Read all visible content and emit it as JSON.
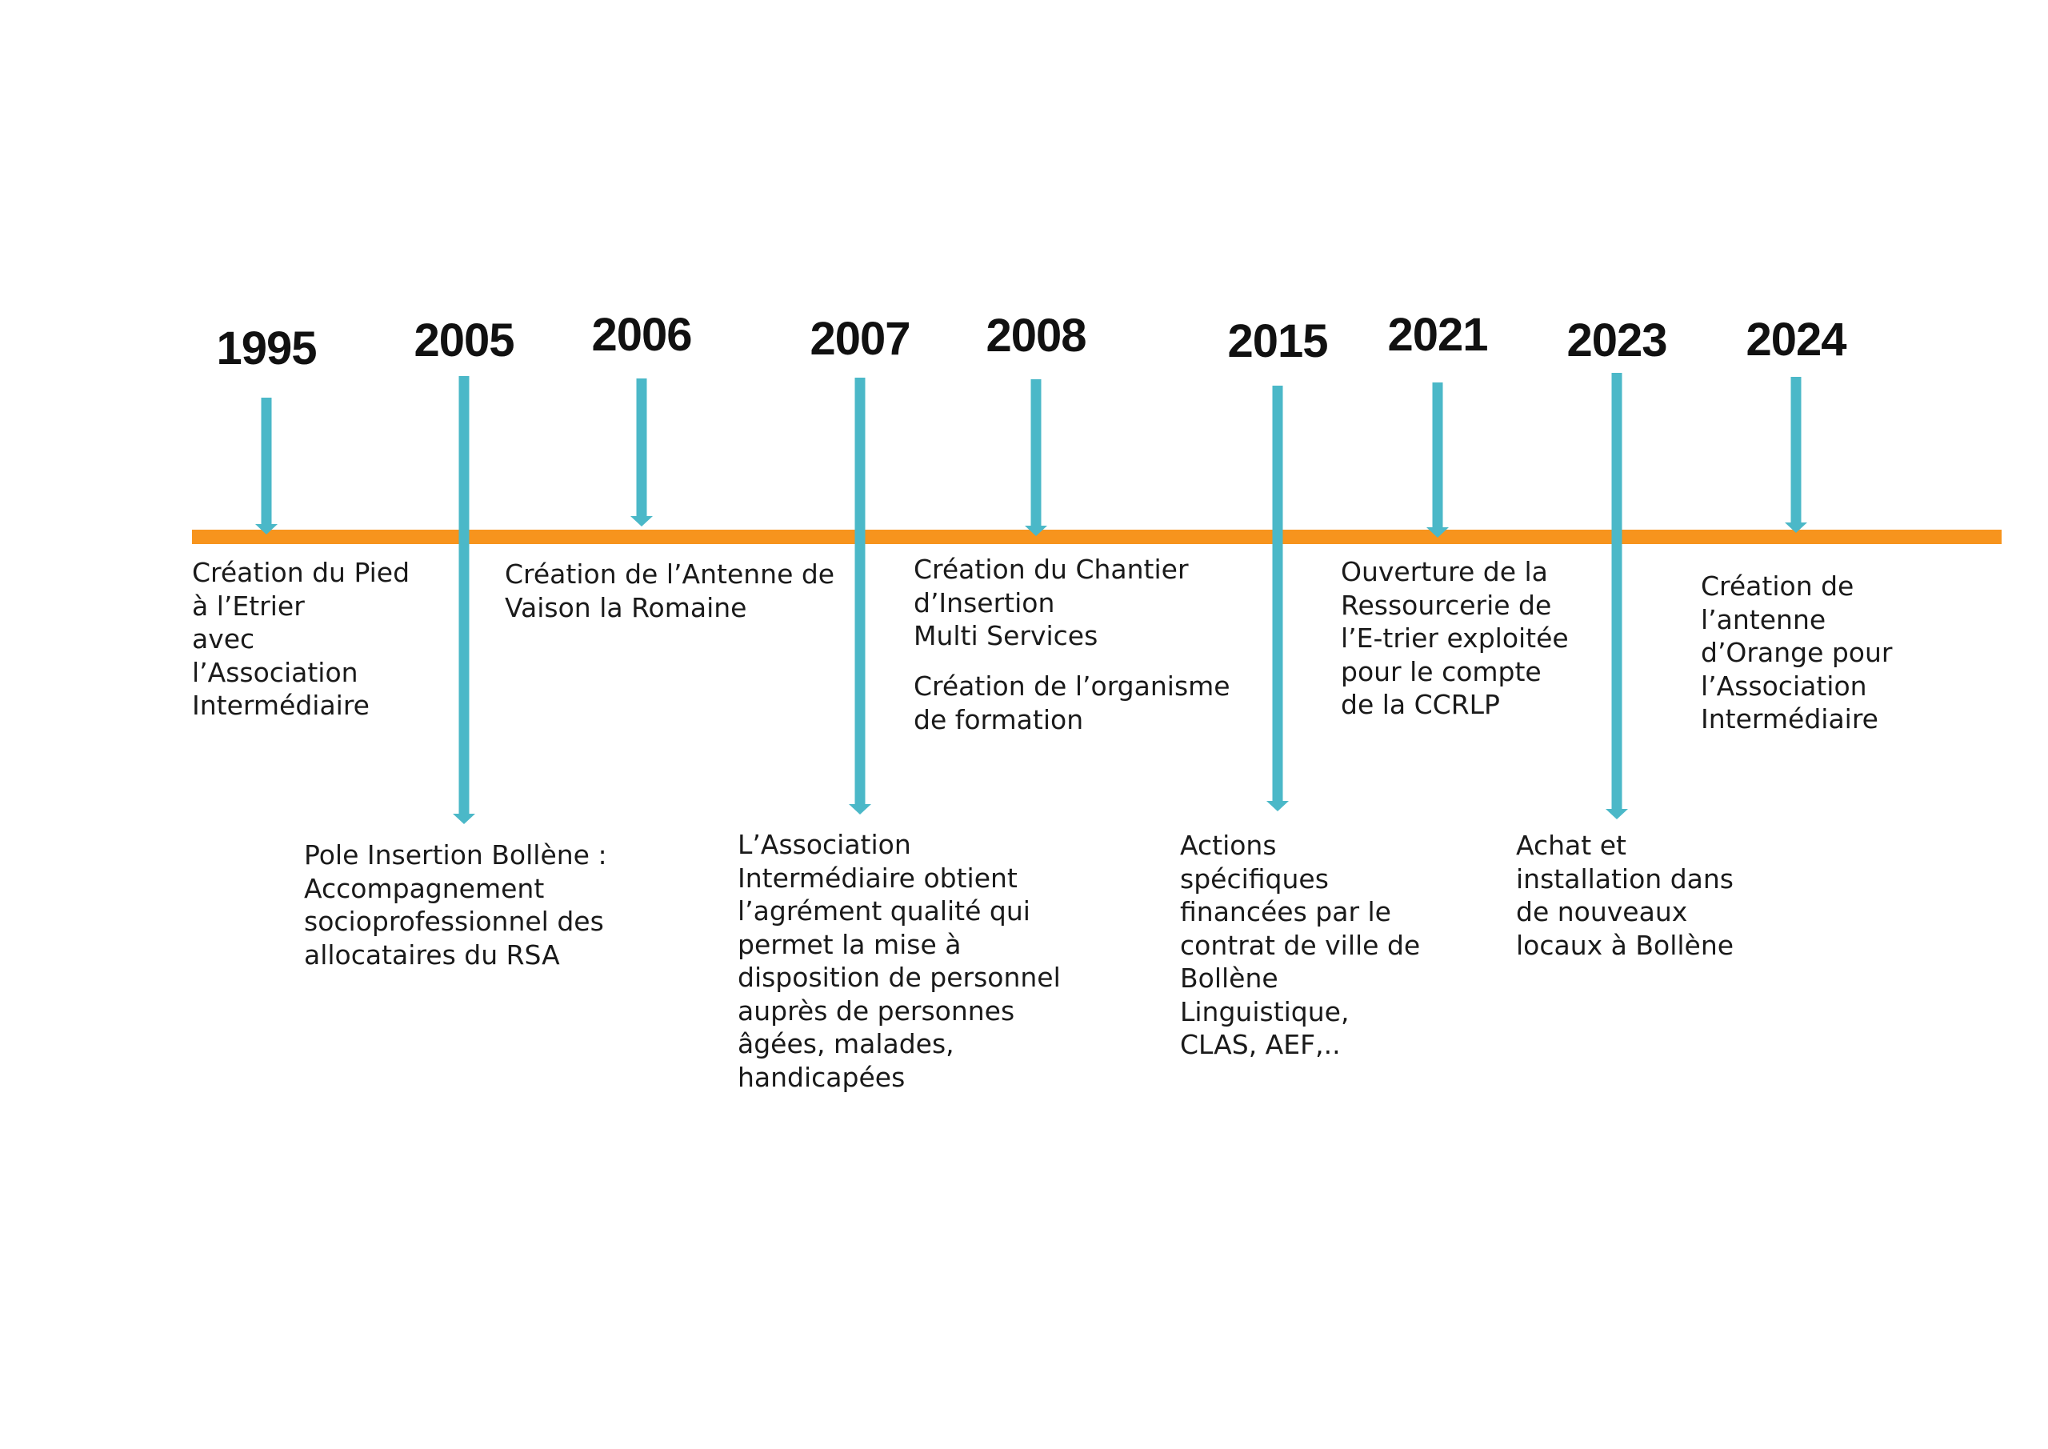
{
  "colors": {
    "axis": "#F7941D",
    "arrow": "#4BB8C8",
    "text": "#1a1a1a"
  },
  "timeline": {
    "milestones": [
      {
        "year": "1995",
        "events": [
          "Création du Pied\nà l’Etrier\navec\nl’Association\nIntermédiaire"
        ]
      },
      {
        "year": "2005",
        "events": [
          "Pole Insertion Bollène :\nAccompagnement\nsocioprofessionnel des\nallocataires du RSA"
        ]
      },
      {
        "year": "2006",
        "events": [
          "Création de l’Antenne de\nVaison la Romaine"
        ]
      },
      {
        "year": "2007",
        "events": [
          "L’Association\nIntermédiaire obtient\nl’agrément qualité qui\npermet la mise à\ndisposition de personnel\nauprès de personnes\nâgées, malades,\nhandicapées"
        ]
      },
      {
        "year": "2008",
        "events": [
          "Création du Chantier\nd’Insertion\nMulti Services",
          "Création de l’organisme\nde formation"
        ]
      },
      {
        "year": "2015",
        "events": [
          "Actions\nspécifiques\nfinancées par le\ncontrat de ville de\nBollène\nLinguistique,\nCLAS, AEF,.."
        ]
      },
      {
        "year": "2021",
        "events": [
          "Ouverture de la\nRessourcerie de\nl’E-trier exploitée\npour le compte\nde la CCRLP"
        ]
      },
      {
        "year": "2023",
        "events": [
          "Achat et\ninstallation dans\nde nouveaux\nlocaux à Bollène"
        ]
      },
      {
        "year": "2024",
        "events": [
          "Création de\nl’antenne\nd’Orange pour\nl’Association\nIntermédiaire"
        ]
      }
    ]
  }
}
